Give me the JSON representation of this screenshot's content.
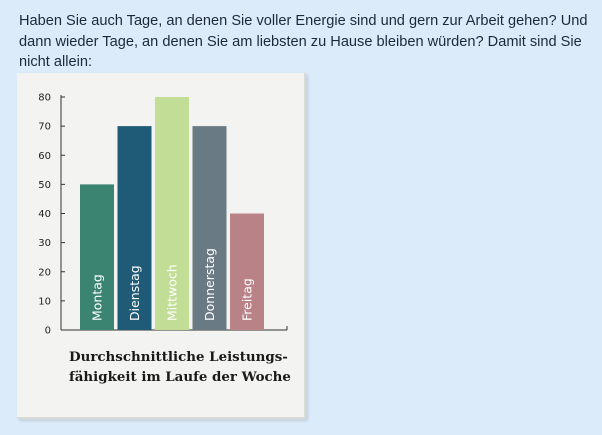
{
  "intro": {
    "lines": [
      "Haben Sie auch Tage, an denen Sie voller Energie sind und gern zur Arbeit gehen? Und",
      "dann wieder Tage, an denen Sie am liebsten zu Hause bleiben würden? Damit sind Sie",
      "nicht allein:"
    ]
  },
  "chart_data": {
    "type": "bar",
    "orientation": "vertical",
    "categories": [
      "Montag",
      "Dienstag",
      "Mittwoch",
      "Donnerstag",
      "Freitag"
    ],
    "values": [
      50,
      70,
      80,
      70,
      40
    ],
    "bar_colors": [
      "#3b8472",
      "#1f5a76",
      "#c1dd96",
      "#6a7a84",
      "#b88287"
    ],
    "category_labels_inside_bars": true,
    "ylim": [
      0,
      80
    ],
    "yticks": [
      0,
      10,
      20,
      30,
      40,
      50,
      60,
      70,
      80
    ],
    "grid": false,
    "xlabel": "",
    "ylabel": "",
    "caption_lines": [
      "Durchschnittliche Leistungs-",
      "fähigkeit im Laufe der Woche"
    ]
  }
}
